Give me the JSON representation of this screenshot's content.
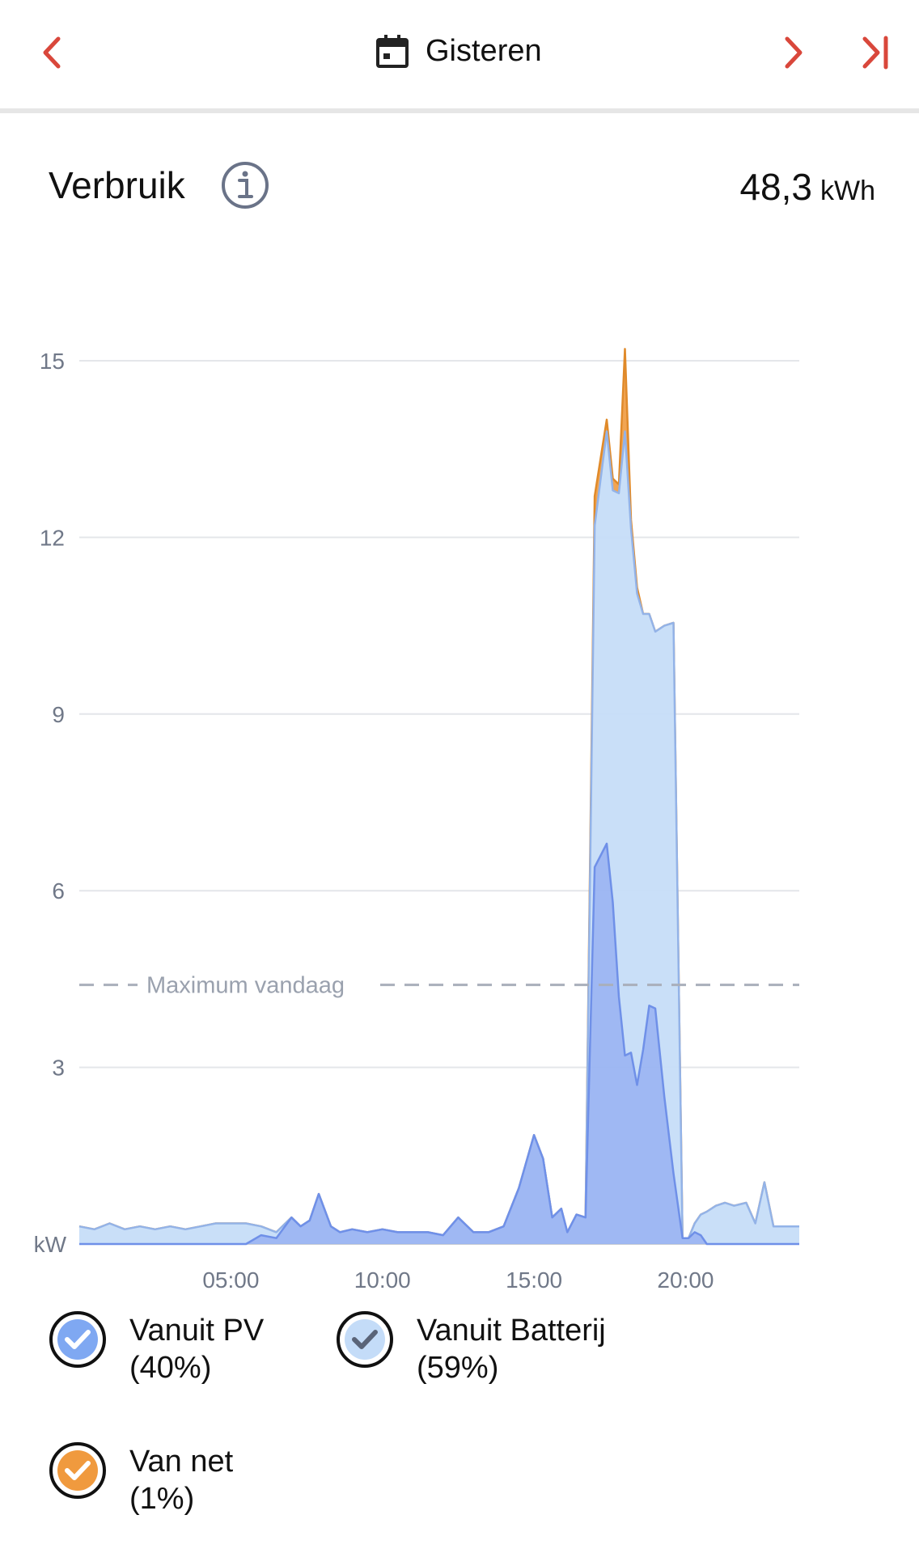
{
  "topbar": {
    "date_label": "Gisteren",
    "prev_icon": "chevron-left-icon",
    "next_icon": "chevron-right-icon",
    "last_icon": "skip-to-end-icon",
    "calendar_icon": "calendar-icon",
    "accent_color": "#d9473b"
  },
  "header": {
    "title": "Verbruik",
    "info_icon": "info-icon",
    "total_value": "48,3",
    "total_unit": "kWh"
  },
  "legend": [
    {
      "label": "Vanuit PV",
      "percent": "(40%)",
      "color": "#7fa8f2",
      "checked": true
    },
    {
      "label": "Vanuit Batterij",
      "percent": "(59%)",
      "color": "#c4dcf8",
      "checked": true
    },
    {
      "label": "Van net",
      "percent": "(1%)",
      "color": "#f09a3e",
      "checked": true
    }
  ],
  "chart_data": {
    "type": "area",
    "stacked": true,
    "ylabel": "kW",
    "ylim": [
      0,
      15
    ],
    "yticks": [
      3,
      6,
      9,
      12,
      15
    ],
    "xlim": [
      0,
      23.75
    ],
    "xticks": [
      5,
      10,
      15,
      20
    ],
    "xtick_labels": [
      "05:00",
      "10:00",
      "15:00",
      "20:00"
    ],
    "grid": true,
    "reference_line": {
      "label": "Maximum vandaag",
      "value": 4.4
    },
    "x": [
      0,
      0.5,
      1,
      1.5,
      2,
      2.5,
      3,
      3.5,
      4,
      4.5,
      5.5,
      6,
      6.5,
      7,
      7.3,
      7.6,
      7.9,
      8.3,
      8.6,
      9,
      9.5,
      10,
      10.5,
      11,
      11.5,
      12,
      12.5,
      13,
      13.5,
      14,
      14.5,
      15,
      15.3,
      15.6,
      15.9,
      16.1,
      16.4,
      16.7,
      17,
      17.4,
      17.6,
      17.8,
      18.0,
      18.2,
      18.4,
      18.6,
      18.8,
      19.0,
      19.3,
      19.6,
      19.9,
      20.1,
      20.3,
      20.5,
      20.7,
      21.0,
      21.3,
      21.6,
      22.0,
      22.3,
      22.6,
      22.9,
      23.2,
      23.5,
      23.75
    ],
    "series": [
      {
        "name": "Vanuit PV",
        "values": [
          0,
          0,
          0,
          0,
          0,
          0,
          0,
          0,
          0,
          0,
          0,
          0.15,
          0.1,
          0.45,
          0.3,
          0.4,
          0.85,
          0.3,
          0.2,
          0.25,
          0.2,
          0.25,
          0.2,
          0.2,
          0.2,
          0.15,
          0.45,
          0.2,
          0.2,
          0.3,
          0.95,
          1.85,
          1.45,
          0.45,
          0.6,
          0.2,
          0.5,
          0.45,
          6.4,
          6.8,
          5.8,
          4.2,
          3.2,
          3.25,
          2.7,
          3.3,
          4.05,
          4.0,
          2.5,
          1.2,
          0.1,
          0.1,
          0.2,
          0.15,
          0,
          0,
          0,
          0,
          0,
          0,
          0,
          0,
          0,
          0,
          0
        ]
      },
      {
        "name": "Vanuit Batterij",
        "values": [
          0.3,
          0.25,
          0.35,
          0.25,
          0.3,
          0.25,
          0.3,
          0.25,
          0.3,
          0.35,
          0.35,
          0.15,
          0.1,
          0,
          0,
          0,
          0,
          0,
          0,
          0,
          0,
          0,
          0,
          0,
          0,
          0,
          0,
          0,
          0,
          0,
          0,
          0,
          0,
          0,
          0,
          0,
          0,
          0,
          5.8,
          7.0,
          7.0,
          8.55,
          10.6,
          8.9,
          8.35,
          7.4,
          6.65,
          6.4,
          8.0,
          9.35,
          0,
          0,
          0.15,
          0.35,
          0.55,
          0.65,
          0.7,
          0.65,
          0.7,
          0.35,
          1.05,
          0.3,
          0.3,
          0.3,
          0.3
        ]
      },
      {
        "name": "Van net",
        "values": [
          0,
          0,
          0,
          0,
          0,
          0,
          0,
          0,
          0,
          0,
          0,
          0,
          0,
          0,
          0,
          0,
          0,
          0,
          0,
          0,
          0,
          0,
          0,
          0,
          0,
          0,
          0,
          0,
          0,
          0,
          0,
          0,
          0,
          0,
          0,
          0,
          0,
          0,
          0.5,
          0.2,
          0.2,
          0.15,
          1.4,
          0.15,
          0.1,
          0,
          0,
          0,
          0,
          0,
          0,
          0,
          0,
          0,
          0,
          0,
          0,
          0,
          0,
          0,
          0,
          0,
          0,
          0,
          0
        ]
      }
    ]
  }
}
